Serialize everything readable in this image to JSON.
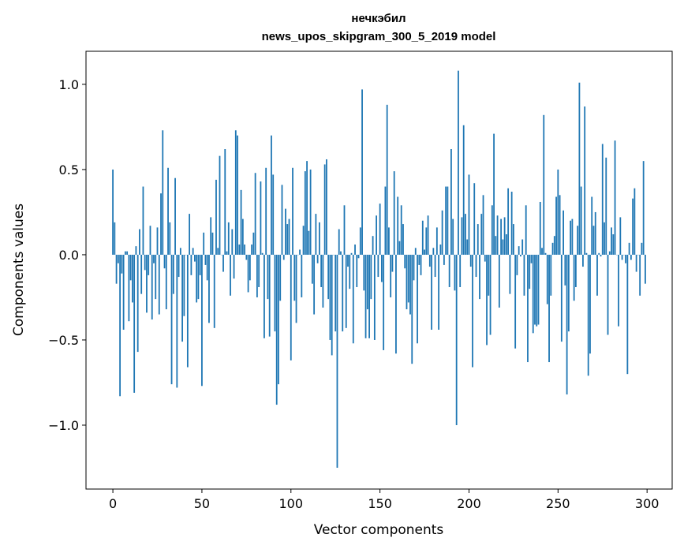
{
  "chart_data": {
    "type": "bar",
    "title_line1": "нечкэбил",
    "title_line2": "news_upos_skipgram_300_5_2019 model",
    "xlabel": "Vector components",
    "ylabel": "Components values",
    "xlim": [
      -15.1,
      314.1
    ],
    "ylim": [
      -1.375,
      1.194
    ],
    "xticks": [
      0,
      50,
      100,
      150,
      200,
      250,
      300
    ],
    "xtick_labels": [
      "0",
      "50",
      "100",
      "150",
      "200",
      "250",
      "300"
    ],
    "yticks": [
      -1.0,
      -0.5,
      0.0,
      0.5,
      1.0
    ],
    "ytick_labels": [
      "−1.0",
      "−0.5",
      "0.0",
      "0.5",
      "1.0"
    ],
    "grid": false,
    "bar_color": "#1f77b4",
    "values": [
      0.5,
      0.19,
      -0.17,
      -0.05,
      -0.83,
      -0.11,
      -0.44,
      0.02,
      0.02,
      -0.39,
      -0.15,
      -0.28,
      -0.81,
      0.05,
      -0.57,
      0.15,
      -0.23,
      0.4,
      -0.09,
      -0.34,
      -0.12,
      0.17,
      -0.38,
      -0.05,
      -0.26,
      0.16,
      -0.35,
      0.36,
      0.73,
      -0.08,
      -0.32,
      0.51,
      0.19,
      -0.76,
      -0.23,
      0.45,
      -0.78,
      -0.13,
      0.04,
      -0.51,
      -0.36,
      0.0,
      -0.66,
      0.24,
      -0.12,
      0.04,
      -0.04,
      -0.28,
      -0.26,
      -0.12,
      -0.77,
      0.13,
      -0.06,
      -0.15,
      -0.4,
      0.22,
      0.13,
      -0.43,
      0.44,
      0.04,
      0.58,
      0.0,
      -0.1,
      0.62,
      0.02,
      0.19,
      -0.24,
      0.15,
      -0.14,
      0.73,
      0.7,
      0.06,
      0.38,
      0.21,
      0.06,
      -0.03,
      -0.22,
      -0.15,
      0.06,
      0.13,
      0.48,
      -0.25,
      -0.19,
      0.43,
      0.01,
      -0.49,
      0.51,
      -0.26,
      -0.48,
      0.7,
      0.47,
      -0.45,
      -0.88,
      -0.76,
      -0.27,
      0.41,
      -0.03,
      0.27,
      0.18,
      0.21,
      -0.62,
      0.51,
      -0.27,
      -0.4,
      0.0,
      0.03,
      -0.25,
      0.17,
      0.49,
      0.55,
      0.14,
      0.5,
      -0.17,
      -0.35,
      0.24,
      -0.05,
      0.19,
      -0.19,
      -0.31,
      0.53,
      0.56,
      -0.26,
      -0.5,
      -0.59,
      0.0,
      -0.45,
      -1.25,
      0.15,
      0.02,
      -0.45,
      0.29,
      -0.43,
      -0.07,
      -0.2,
      0.01,
      -0.52,
      0.06,
      -0.19,
      -0.02,
      0.16,
      0.97,
      -0.21,
      -0.49,
      -0.32,
      -0.49,
      -0.26,
      0.11,
      -0.5,
      0.23,
      -0.13,
      0.3,
      -0.16,
      -0.56,
      0.4,
      0.88,
      0.16,
      -0.25,
      -0.1,
      0.49,
      -0.58,
      0.34,
      0.08,
      0.29,
      0.18,
      -0.08,
      -0.32,
      -0.28,
      -0.35,
      -0.64,
      -0.15,
      0.04,
      -0.52,
      -0.06,
      -0.12,
      0.2,
      0.03,
      0.16,
      0.23,
      -0.07,
      -0.44,
      0.04,
      -0.13,
      0.16,
      -0.44,
      0.06,
      0.26,
      -0.06,
      0.4,
      0.4,
      -0.19,
      0.62,
      0.21,
      -0.21,
      -1.0,
      1.08,
      -0.19,
      0.22,
      0.76,
      0.24,
      0.09,
      0.47,
      -0.07,
      -0.66,
      0.42,
      -0.13,
      0.18,
      -0.26,
      0.24,
      0.35,
      -0.04,
      -0.53,
      -0.24,
      -0.47,
      0.29,
      0.71,
      0.11,
      0.23,
      -0.31,
      0.21,
      0.09,
      0.22,
      0.12,
      0.39,
      -0.23,
      0.37,
      0.18,
      -0.55,
      -0.12,
      0.05,
      -0.01,
      0.09,
      -0.24,
      0.29,
      -0.63,
      -0.2,
      -0.05,
      -0.46,
      -0.41,
      -0.42,
      -0.41,
      0.31,
      0.04,
      0.82,
      0.01,
      -0.29,
      -0.63,
      -0.24,
      0.07,
      0.11,
      0.34,
      0.5,
      0.35,
      -0.51,
      0.26,
      -0.18,
      -0.82,
      -0.45,
      0.2,
      0.21,
      -0.27,
      -0.19,
      0.17,
      1.01,
      0.4,
      -0.07,
      0.87,
      0.01,
      -0.71,
      -0.58,
      0.34,
      0.17,
      0.25,
      -0.24,
      0.01,
      -0.01,
      0.65,
      0.19,
      0.57,
      -0.47,
      0.02,
      0.16,
      0.12,
      0.67,
      0.0,
      -0.42,
      0.22,
      -0.03,
      0.0,
      -0.05,
      -0.7,
      0.07,
      -0.03,
      0.33,
      0.39,
      -0.1,
      0.0,
      -0.24,
      0.07,
      0.55,
      -0.17
    ]
  }
}
